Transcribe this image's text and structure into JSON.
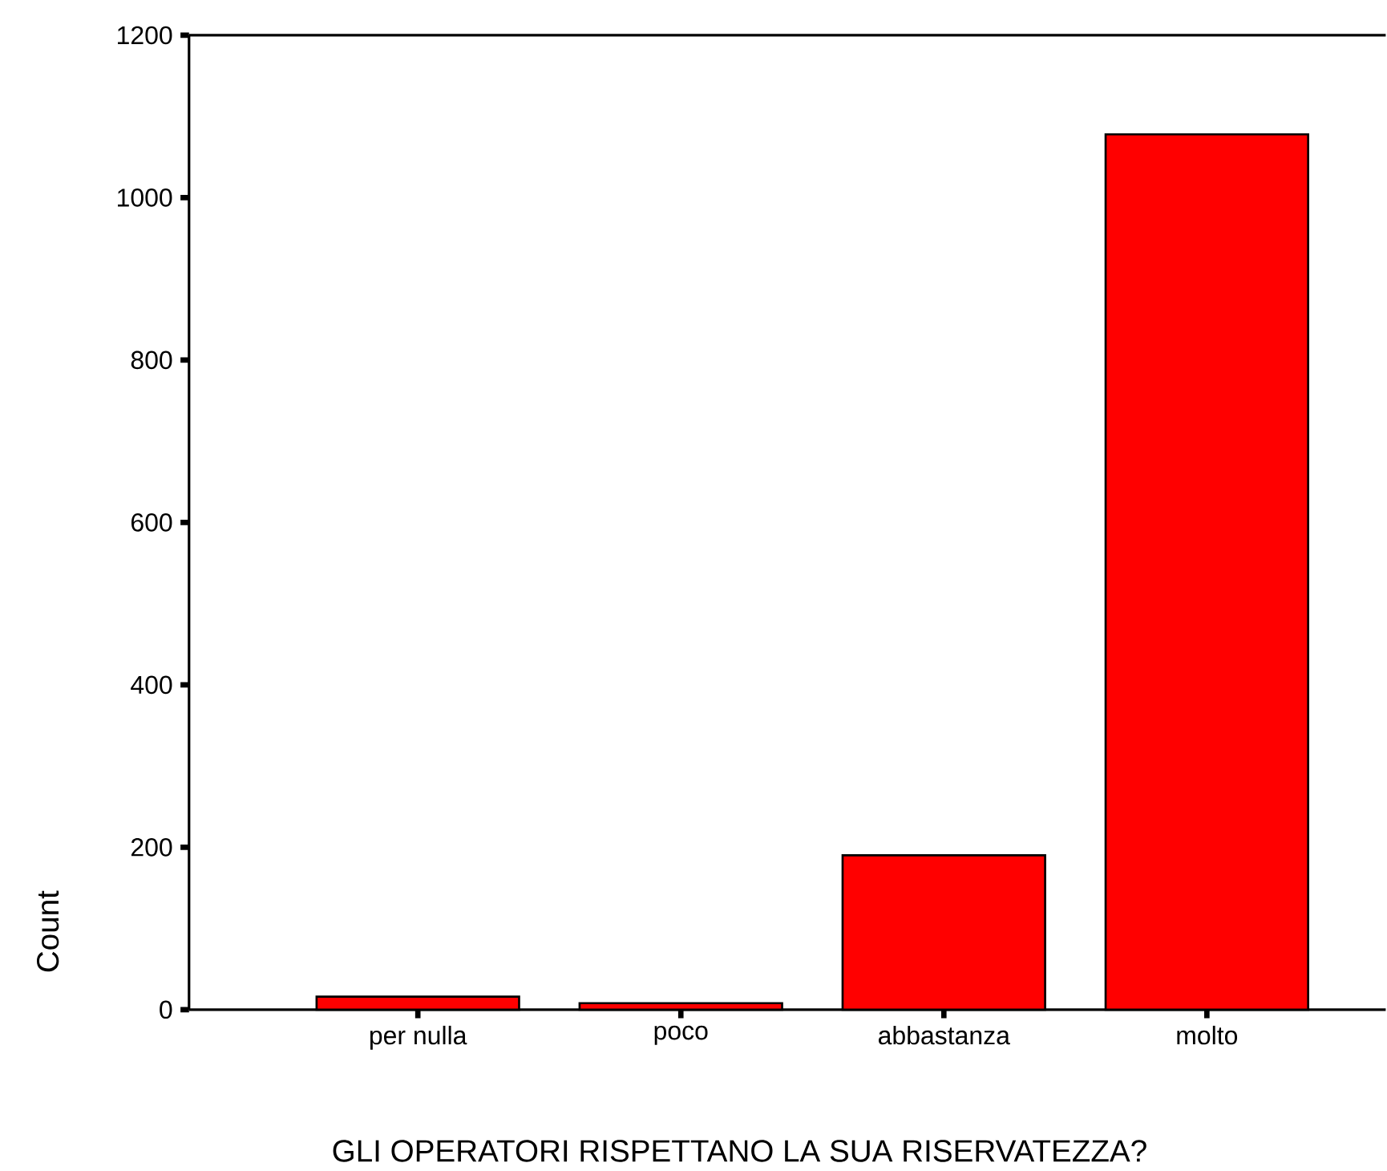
{
  "chart_data": {
    "type": "bar",
    "xlabel": "GLI OPERATORI RISPETTANO LA SUA RISERVATEZZA?",
    "ylabel": "Count",
    "categories": [
      "per nulla",
      "poco",
      "abbastanza",
      "molto"
    ],
    "values": [
      16,
      8,
      190,
      1078
    ],
    "color": "#ff0000",
    "ylim": [
      0,
      1200
    ],
    "yticks": [
      0,
      200,
      400,
      600,
      800,
      1000,
      1200
    ],
    "grid": false
  }
}
